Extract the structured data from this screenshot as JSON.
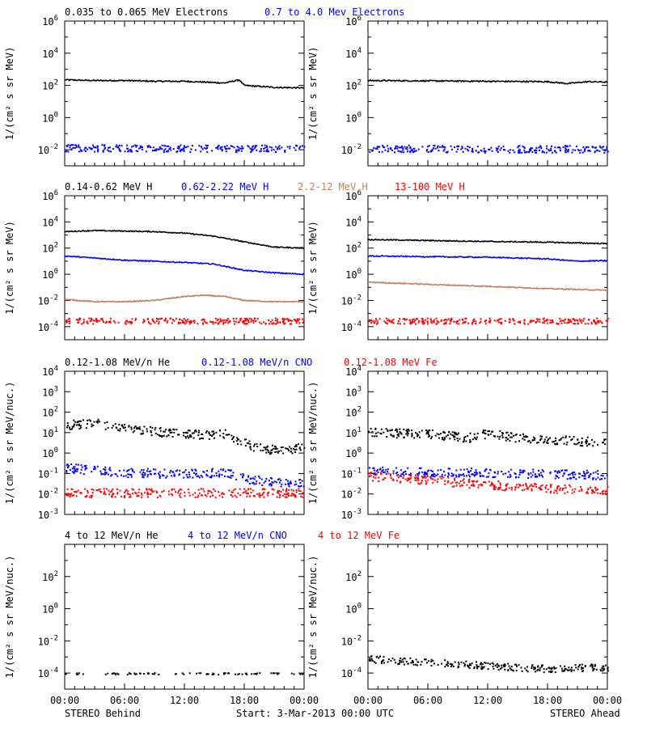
{
  "footer": {
    "left_label": "STEREO Behind",
    "center_label": "Start:  3-Mar-2013 00:00 UTC",
    "right_label": "STEREO Ahead"
  },
  "chart_data": [
    {
      "type": "scatter",
      "id": "electrons",
      "y_scale": "log",
      "ylabel": "1/(cm² s sr MeV)",
      "y_decades": [
        -3,
        6
      ],
      "y_tick_exponents": [
        -2,
        0,
        2,
        4,
        6
      ],
      "legend": [
        {
          "text": "0.035 to 0.065 MeV Electrons",
          "color": "#000000"
        },
        {
          "text": "0.7 to 4.0 Mev Electrons",
          "color": "#0000ff"
        }
      ],
      "panels": [
        {
          "side": "STEREO Behind",
          "series": [
            {
              "color": "#000000",
              "style": "line",
              "keyframes": [
                [
                  0,
                  220
                ],
                [
                  3,
                  200
                ],
                [
                  6,
                  200
                ],
                [
                  9,
                  180
                ],
                [
                  12,
                  180
                ],
                [
                  15,
                  150
                ],
                [
                  16,
                  140
                ],
                [
                  17.5,
                  220
                ],
                [
                  18,
                  100
                ],
                [
                  21,
                  75
                ],
                [
                  24,
                  70
                ]
              ]
            },
            {
              "color": "#0000ff",
              "style": "dots",
              "keyframes": [
                [
                  0,
                  0.014
                ],
                [
                  12,
                  0.013
                ],
                [
                  24,
                  0.013
                ]
              ]
            }
          ]
        },
        {
          "side": "STEREO Ahead",
          "series": [
            {
              "color": "#000000",
              "style": "line",
              "keyframes": [
                [
                  0,
                  200
                ],
                [
                  6,
                  190
                ],
                [
                  12,
                  180
                ],
                [
                  18,
                  170
                ],
                [
                  20,
                  130
                ],
                [
                  22,
                  170
                ],
                [
                  24,
                  160
                ]
              ]
            },
            {
              "color": "#0000ff",
              "style": "dots",
              "keyframes": [
                [
                  0,
                  0.013
                ],
                [
                  12,
                  0.012
                ],
                [
                  24,
                  0.012
                ]
              ]
            }
          ]
        }
      ]
    },
    {
      "type": "scatter",
      "id": "protons",
      "y_scale": "log",
      "ylabel": "1/(cm² s sr MeV)",
      "y_decades": [
        -5,
        6
      ],
      "y_tick_exponents": [
        -4,
        -2,
        0,
        2,
        4,
        6
      ],
      "legend": [
        {
          "text": "0.14-0.62 MeV H",
          "color": "#000000"
        },
        {
          "text": "0.62-2.22 MeV H",
          "color": "#0000ff"
        },
        {
          "text": "2.2-12 MeV H",
          "color": "#c08060"
        },
        {
          "text": "13-100 MeV H",
          "color": "#ff0000"
        }
      ],
      "panels": [
        {
          "side": "STEREO Behind",
          "series": [
            {
              "color": "#000000",
              "style": "line",
              "keyframes": [
                [
                  0,
                  1800
                ],
                [
                  3,
                  2200
                ],
                [
                  9,
                  1800
                ],
                [
                  12,
                  1400
                ],
                [
                  15,
                  800
                ],
                [
                  18,
                  300
                ],
                [
                  21,
                  120
                ],
                [
                  24,
                  100
                ]
              ]
            },
            {
              "color": "#0000ff",
              "style": "line",
              "keyframes": [
                [
                  0,
                  25
                ],
                [
                  6,
                  12
                ],
                [
                  12,
                  8
                ],
                [
                  15,
                  6
                ],
                [
                  18,
                  2
                ],
                [
                  21,
                  1.3
                ],
                [
                  24,
                  1
                ]
              ]
            },
            {
              "color": "#c08060",
              "style": "line",
              "keyframes": [
                [
                  0,
                  0.012
                ],
                [
                  3,
                  0.008
                ],
                [
                  6,
                  0.008
                ],
                [
                  9,
                  0.01
                ],
                [
                  12,
                  0.02
                ],
                [
                  14,
                  0.025
                ],
                [
                  16,
                  0.02
                ],
                [
                  18,
                  0.01
                ],
                [
                  21,
                  0.008
                ],
                [
                  24,
                  0.008
                ]
              ]
            },
            {
              "color": "#ff0000",
              "style": "dots",
              "keyframes": [
                [
                  0,
                  0.0003
                ],
                [
                  12,
                  0.0003
                ],
                [
                  24,
                  0.0003
                ]
              ]
            }
          ]
        },
        {
          "side": "STEREO Ahead",
          "series": [
            {
              "color": "#000000",
              "style": "line",
              "keyframes": [
                [
                  0,
                  450
                ],
                [
                  6,
                  380
                ],
                [
                  12,
                  320
                ],
                [
                  18,
                  280
                ],
                [
                  24,
                  220
                ]
              ]
            },
            {
              "color": "#0000ff",
              "style": "line",
              "keyframes": [
                [
                  0,
                  25
                ],
                [
                  6,
                  22
                ],
                [
                  12,
                  20
                ],
                [
                  18,
                  15
                ],
                [
                  21,
                  10
                ],
                [
                  24,
                  11
                ]
              ]
            },
            {
              "color": "#c08060",
              "style": "line",
              "keyframes": [
                [
                  0,
                  0.25
                ],
                [
                  6,
                  0.17
                ],
                [
                  12,
                  0.12
                ],
                [
                  18,
                  0.08
                ],
                [
                  24,
                  0.06
                ]
              ]
            },
            {
              "color": "#ff0000",
              "style": "dots",
              "keyframes": [
                [
                  0,
                  0.0003
                ],
                [
                  12,
                  0.0003
                ],
                [
                  24,
                  0.0003
                ]
              ]
            }
          ]
        }
      ]
    },
    {
      "type": "scatter",
      "id": "heavy-ions-low",
      "y_scale": "log",
      "ylabel": "1/(cm² s sr MeV/nuc.)",
      "y_decades": [
        -3,
        4
      ],
      "y_tick_exponents": [
        -3,
        -2,
        -1,
        0,
        1,
        2,
        3,
        4
      ],
      "legend": [
        {
          "text": "0.12-1.08 MeV/n He",
          "color": "#000000"
        },
        {
          "text": "0.12-1.08 MeV/n CNO",
          "color": "#0000ff"
        },
        {
          "text": "0.12-1.08 MeV Fe",
          "color": "#ff0000"
        }
      ],
      "panels": [
        {
          "side": "STEREO Behind",
          "series": [
            {
              "color": "#000000",
              "style": "dots",
              "keyframes": [
                [
                  0,
                  25
                ],
                [
                  3,
                  30
                ],
                [
                  6,
                  20
                ],
                [
                  9,
                  12
                ],
                [
                  12,
                  9
                ],
                [
                  15,
                  8
                ],
                [
                  16,
                  10
                ],
                [
                  17,
                  5
                ],
                [
                  18,
                  4
                ],
                [
                  19,
                  2
                ],
                [
                  21,
                  1.5
                ],
                [
                  23,
                  1.8
                ],
                [
                  24,
                  2
                ]
              ]
            },
            {
              "color": "#0000ff",
              "style": "dots",
              "keyframes": [
                [
                  0,
                  0.2
                ],
                [
                  6,
                  0.12
                ],
                [
                  12,
                  0.1
                ],
                [
                  16,
                  0.12
                ],
                [
                  18,
                  0.06
                ],
                [
                  21,
                  0.04
                ],
                [
                  24,
                  0.04
                ]
              ]
            },
            {
              "color": "#ff0000",
              "style": "dots",
              "keyframes": [
                [
                  0,
                  0.012
                ],
                [
                  12,
                  0.012
                ],
                [
                  24,
                  0.012
                ]
              ]
            }
          ]
        },
        {
          "side": "STEREO Ahead",
          "series": [
            {
              "color": "#000000",
              "style": "dots",
              "keyframes": [
                [
                  0,
                  11
                ],
                [
                  6,
                  9
                ],
                [
                  10,
                  6
                ],
                [
                  12,
                  10
                ],
                [
                  15,
                  6
                ],
                [
                  18,
                  5
                ],
                [
                  21,
                  4
                ],
                [
                  24,
                  4
                ]
              ]
            },
            {
              "color": "#0000ff",
              "style": "dots",
              "keyframes": [
                [
                  0,
                  0.15
                ],
                [
                  6,
                  0.12
                ],
                [
                  12,
                  0.12
                ],
                [
                  18,
                  0.1
                ],
                [
                  24,
                  0.09
                ]
              ]
            },
            {
              "color": "#ff0000",
              "style": "dots",
              "keyframes": [
                [
                  0,
                  0.08
                ],
                [
                  6,
                  0.05
                ],
                [
                  12,
                  0.03
                ],
                [
                  18,
                  0.02
                ],
                [
                  24,
                  0.015
                ]
              ]
            }
          ]
        }
      ]
    },
    {
      "type": "scatter",
      "id": "heavy-ions-high",
      "y_scale": "log",
      "ylabel": "1/(cm² s sr MeV/nuc.)",
      "y_decades": [
        -5,
        4
      ],
      "y_tick_exponents": [
        -4,
        -2,
        0,
        2
      ],
      "legend": [
        {
          "text": "4 to 12 MeV/n He",
          "color": "#000000"
        },
        {
          "text": "4 to 12 MeV/n CNO",
          "color": "#0000ff"
        },
        {
          "text": "4 to 12 MeV Fe",
          "color": "#ff0000"
        }
      ],
      "panels": [
        {
          "side": "STEREO Behind",
          "series": [
            {
              "color": "#000000",
              "style": "sparse",
              "keyframes": [
                [
                  0,
                  0.0001
                ],
                [
                  24,
                  0.0001
                ]
              ]
            }
          ]
        },
        {
          "side": "STEREO Ahead",
          "series": [
            {
              "color": "#000000",
              "style": "dots",
              "keyframes": [
                [
                  0,
                  0.0008
                ],
                [
                  6,
                  0.0005
                ],
                [
                  12,
                  0.0003
                ],
                [
                  18,
                  0.0002
                ],
                [
                  24,
                  0.00025
                ]
              ]
            }
          ]
        }
      ]
    }
  ],
  "x_axis": {
    "range_hours": [
      0,
      24
    ],
    "tick_labels": [
      "00:00",
      "06:00",
      "12:00",
      "18:00",
      "00:00"
    ]
  }
}
